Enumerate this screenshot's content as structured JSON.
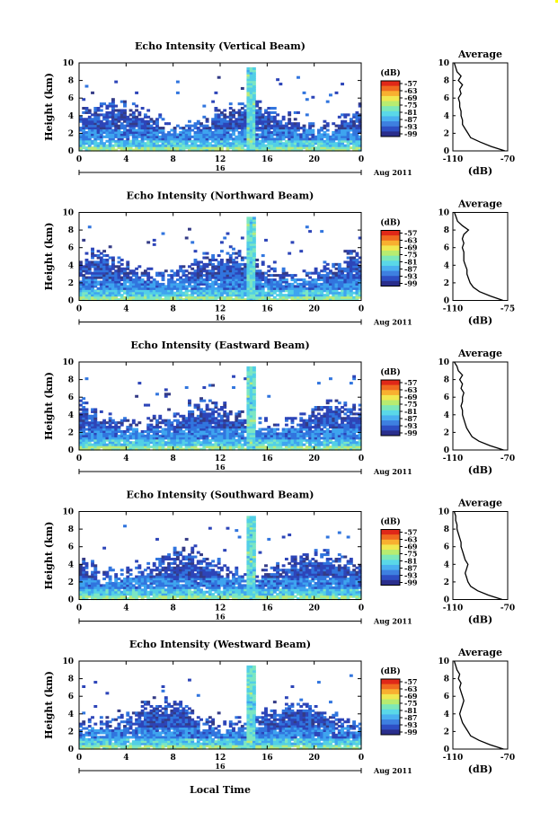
{
  "figure": {
    "xlabel": "Local Time",
    "date_label": "Aug 2011",
    "day_marker": "16",
    "colorbar_unit": "(dB)",
    "colorbar_ticks": [
      "-57",
      "-63",
      "-69",
      "-75",
      "-81",
      "-87",
      "-93",
      "-99"
    ],
    "avg_title": "Average",
    "avg_xlabel": "(dB)"
  },
  "chart_data": [
    {
      "type": "heatmap",
      "title": "Echo Intensity (Vertical Beam)",
      "ylabel": "Height (km)",
      "xticks": [
        "0",
        "4",
        "8",
        "12",
        "16",
        "20",
        "0"
      ],
      "yticks": [
        "0",
        "2",
        "4",
        "6",
        "8",
        "10"
      ],
      "xlim": [
        0,
        24
      ],
      "ylim": [
        0,
        10
      ],
      "colorbar_range": [
        -99,
        -57
      ],
      "average_profile": {
        "xticks": [
          "-110",
          "-70"
        ],
        "xlim": [
          -110,
          -70
        ],
        "ylim": [
          0,
          10
        ],
        "yticks": [
          "0",
          "2",
          "4",
          "6",
          "8",
          "10"
        ],
        "height": [
          0,
          0.5,
          1,
          1.5,
          2,
          2.5,
          3,
          3.5,
          4,
          4.5,
          5,
          5.5,
          6,
          6.5,
          7,
          7.5,
          8,
          8.5,
          9,
          9.5,
          10
        ],
        "db": [
          -72,
          -82,
          -90,
          -97,
          -99,
          -101,
          -103,
          -103,
          -104,
          -104,
          -105,
          -105,
          -106,
          -104,
          -105,
          -103,
          -106,
          -104,
          -107,
          -108,
          -109
        ]
      }
    },
    {
      "type": "heatmap",
      "title": "Echo Intensity (Northward Beam)",
      "ylabel": "Height (km)",
      "xticks": [
        "0",
        "4",
        "8",
        "12",
        "16",
        "20",
        "0"
      ],
      "yticks": [
        "0",
        "2",
        "4",
        "6",
        "8",
        "10"
      ],
      "xlim": [
        0,
        24
      ],
      "ylim": [
        0,
        10
      ],
      "colorbar_range": [
        -99,
        -57
      ],
      "average_profile": {
        "xticks": [
          "-110",
          "-75"
        ],
        "xlim": [
          -110,
          -75
        ],
        "ylim": [
          0,
          10
        ],
        "yticks": [
          "0",
          "2",
          "4",
          "6",
          "8",
          "10"
        ],
        "height": [
          0,
          0.5,
          1,
          1.5,
          2,
          2.5,
          3,
          3.5,
          4,
          4.5,
          5,
          5.5,
          6,
          6.5,
          7,
          7.5,
          8,
          8.5,
          9,
          9.5,
          10
        ],
        "db": [
          -78,
          -86,
          -93,
          -97,
          -99,
          -100,
          -101,
          -101,
          -102,
          -103,
          -103,
          -103,
          -104,
          -103,
          -104,
          -103,
          -100,
          -104,
          -107,
          -108,
          -109
        ]
      }
    },
    {
      "type": "heatmap",
      "title": "Echo Intensity (Eastward Beam)",
      "ylabel": "Height (km)",
      "xticks": [
        "0",
        "4",
        "8",
        "12",
        "16",
        "20",
        "0"
      ],
      "yticks": [
        "0",
        "2",
        "4",
        "6",
        "8",
        "10"
      ],
      "xlim": [
        0,
        24
      ],
      "ylim": [
        0,
        10
      ],
      "colorbar_range": [
        -99,
        -57
      ],
      "average_profile": {
        "xticks": [
          "-110",
          "-70"
        ],
        "xlim": [
          -110,
          -70
        ],
        "ylim": [
          0,
          10
        ],
        "yticks": [
          "0",
          "2",
          "4",
          "6",
          "8",
          "10"
        ],
        "height": [
          0,
          0.5,
          1,
          1.5,
          2,
          2.5,
          3,
          3.5,
          4,
          4.5,
          5,
          5.5,
          6,
          6.5,
          7,
          7.5,
          8,
          8.5,
          9,
          9.5,
          10
        ],
        "db": [
          -73,
          -83,
          -91,
          -96,
          -98,
          -100,
          -101,
          -102,
          -103,
          -103,
          -104,
          -103,
          -103,
          -102,
          -104,
          -103,
          -105,
          -103,
          -106,
          -107,
          -109
        ]
      }
    },
    {
      "type": "heatmap",
      "title": "Echo Intensity (Southward Beam)",
      "ylabel": "Height (km)",
      "xticks": [
        "0",
        "4",
        "8",
        "12",
        "16",
        "20",
        "0"
      ],
      "yticks": [
        "0",
        "2",
        "4",
        "6",
        "8",
        "10"
      ],
      "xlim": [
        0,
        24
      ],
      "ylim": [
        0,
        10
      ],
      "colorbar_range": [
        -99,
        -57
      ],
      "average_profile": {
        "xticks": [
          "-110",
          "-70"
        ],
        "xlim": [
          -110,
          -70
        ],
        "ylim": [
          0,
          10
        ],
        "yticks": [
          "0",
          "2",
          "4",
          "6",
          "8",
          "10"
        ],
        "height": [
          0,
          0.5,
          1,
          1.5,
          2,
          2.5,
          3,
          3.5,
          4,
          4.5,
          5,
          5.5,
          6,
          6.5,
          7,
          7.5,
          8,
          8.5,
          9,
          9.5,
          10
        ],
        "db": [
          -74,
          -84,
          -92,
          -97,
          -99,
          -100,
          -101,
          -100,
          -99,
          -101,
          -102,
          -103,
          -104,
          -104,
          -105,
          -106,
          -107,
          -107,
          -108,
          -108,
          -109
        ]
      }
    },
    {
      "type": "heatmap",
      "title": "Echo Intensity (Westward Beam)",
      "ylabel": "Height (km)",
      "xticks": [
        "0",
        "4",
        "8",
        "12",
        "16",
        "20",
        "0"
      ],
      "yticks": [
        "0",
        "2",
        "4",
        "6",
        "8",
        "10"
      ],
      "xlim": [
        0,
        24
      ],
      "ylim": [
        0,
        10
      ],
      "colorbar_range": [
        -99,
        -57
      ],
      "average_profile": {
        "xticks": [
          "-110",
          "-70"
        ],
        "xlim": [
          -110,
          -70
        ],
        "ylim": [
          0,
          10
        ],
        "yticks": [
          "0",
          "2",
          "4",
          "6",
          "8",
          "10"
        ],
        "height": [
          0,
          0.5,
          1,
          1.5,
          2,
          2.5,
          3,
          3.5,
          4,
          4.5,
          5,
          5.5,
          6,
          6.5,
          7,
          7.5,
          8,
          8.5,
          9,
          9.5,
          10
        ],
        "db": [
          -73,
          -83,
          -91,
          -97,
          -99,
          -101,
          -103,
          -104,
          -105,
          -104,
          -103,
          -102,
          -103,
          -104,
          -105,
          -104,
          -106,
          -105,
          -107,
          -108,
          -109
        ]
      }
    }
  ]
}
